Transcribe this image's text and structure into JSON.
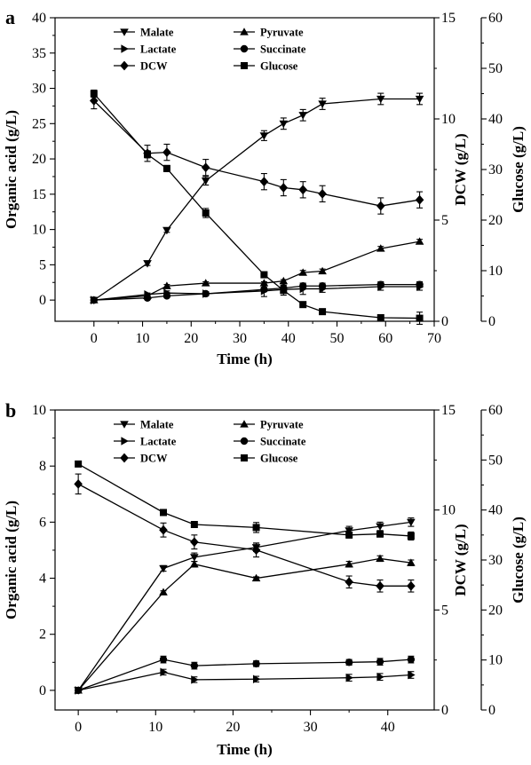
{
  "chart_data": [
    {
      "type": "line",
      "panel_label": "a",
      "xlabel": "Time (h)",
      "ylabel_left": "Organic acid (g/L)",
      "ylabel_right1": "DCW (g/L)",
      "ylabel_right2": "Glucose (g/L)",
      "xlim": [
        -8,
        70
      ],
      "ylim_left": [
        -3,
        40
      ],
      "ylim_right1": [
        0,
        15
      ],
      "ylim_right2": [
        0,
        60
      ],
      "x_ticks": [
        0,
        10,
        20,
        30,
        40,
        50,
        60,
        70
      ],
      "y_ticks_left": [
        0,
        5,
        10,
        15,
        20,
        25,
        30,
        35,
        40
      ],
      "y_ticks_right1": [
        0,
        5,
        10,
        15
      ],
      "y_ticks_right2": [
        0,
        10,
        20,
        30,
        40,
        50,
        60
      ],
      "legend": [
        "Malate",
        "Pyruvate",
        "Lactate",
        "Succinate",
        "DCW",
        "Glucose"
      ],
      "series": [
        {
          "name": "Malate",
          "axis": "left",
          "marker": "tri-down",
          "x": [
            0,
            11,
            15,
            23,
            35,
            39,
            43,
            47,
            59,
            67
          ],
          "y": [
            0,
            5.2,
            9.9,
            16.9,
            23.3,
            25.0,
            26.2,
            27.8,
            28.5,
            28.5
          ],
          "err": [
            0.2,
            0.3,
            0.3,
            0.6,
            0.7,
            0.8,
            0.8,
            0.8,
            0.8,
            0.8
          ]
        },
        {
          "name": "Pyruvate",
          "axis": "left",
          "marker": "tri-up",
          "x": [
            0,
            11,
            15,
            23,
            35,
            39,
            43,
            47,
            59,
            67
          ],
          "y": [
            0,
            0.6,
            2.0,
            2.4,
            2.4,
            2.7,
            3.9,
            4.1,
            7.3,
            8.3
          ],
          "err": [
            0.1,
            0.2,
            0.2,
            0.2,
            0.2,
            0.2,
            0.3,
            0.3,
            0.3,
            0.3
          ]
        },
        {
          "name": "Lactate",
          "axis": "left",
          "marker": "tri-right",
          "x": [
            0,
            11,
            15,
            23,
            35,
            39,
            43,
            47,
            59,
            67
          ],
          "y": [
            0,
            0.8,
            1.0,
            0.9,
            1.3,
            1.5,
            1.6,
            1.6,
            1.9,
            1.9
          ],
          "err": [
            0.1,
            0.2,
            0.3,
            0.3,
            0.8,
            0.8,
            0.8,
            0.5,
            0.5,
            0.5
          ]
        },
        {
          "name": "Succinate",
          "axis": "left",
          "marker": "circle",
          "x": [
            0,
            11,
            15,
            23,
            35,
            39,
            43,
            47,
            59,
            67
          ],
          "y": [
            0,
            0.3,
            0.6,
            0.9,
            1.5,
            1.7,
            2.0,
            2.0,
            2.2,
            2.2
          ],
          "err": [
            0.1,
            0.2,
            0.2,
            0.3,
            0.3,
            0.4,
            0.4,
            0.4,
            0.4,
            0.4
          ]
        },
        {
          "name": "DCW",
          "axis": "right1",
          "marker": "diamond",
          "x": [
            0,
            11,
            15,
            23,
            35,
            39,
            43,
            47,
            59,
            67
          ],
          "y": [
            10.9,
            8.3,
            8.35,
            7.6,
            6.9,
            6.6,
            6.5,
            6.3,
            5.7,
            6.0
          ],
          "err": [
            0.4,
            0.4,
            0.4,
            0.4,
            0.4,
            0.4,
            0.4,
            0.4,
            0.4,
            0.4
          ]
        },
        {
          "name": "Glucose",
          "axis": "right2",
          "marker": "square",
          "x": [
            0,
            11,
            15,
            23,
            35,
            39,
            43,
            47,
            59,
            67
          ],
          "y": [
            45.0,
            33.0,
            30.2,
            21.4,
            9.2,
            6.1,
            3.3,
            1.9,
            0.7,
            0.6
          ],
          "err": [
            0.7,
            0.7,
            0.6,
            0.9,
            0.5,
            0.5,
            0.4,
            0.4,
            0.3,
            1.2
          ]
        }
      ]
    },
    {
      "type": "line",
      "panel_label": "b",
      "xlabel": "Time (h)",
      "ylabel_left": "Organic acid (g/L)",
      "ylabel_right1": "DCW (g/L)",
      "ylabel_right2": "Glucose (g/L)",
      "xlim": [
        -3,
        46
      ],
      "ylim_left": [
        -0.7,
        10
      ],
      "ylim_right1": [
        0,
        15
      ],
      "ylim_right2": [
        0,
        60
      ],
      "x_ticks": [
        0,
        10,
        20,
        30,
        40
      ],
      "y_ticks_left": [
        0,
        2,
        4,
        6,
        8,
        10
      ],
      "y_ticks_right1": [
        0,
        5,
        10,
        15
      ],
      "y_ticks_right2": [
        0,
        10,
        20,
        30,
        40,
        50,
        60
      ],
      "legend": [
        "Malate",
        "Pyruvate",
        "Lactate",
        "Succinate",
        "DCW",
        "Glucose"
      ],
      "series": [
        {
          "name": "Malate",
          "axis": "left",
          "marker": "tri-down",
          "x": [
            0,
            11,
            15,
            23,
            35,
            39,
            43
          ],
          "y": [
            0,
            4.35,
            4.75,
            5.1,
            5.7,
            5.85,
            6.0
          ],
          "err": [
            0.05,
            0.1,
            0.15,
            0.15,
            0.15,
            0.15,
            0.15
          ]
        },
        {
          "name": "Pyruvate",
          "axis": "left",
          "marker": "tri-up",
          "x": [
            0,
            11,
            15,
            23,
            35,
            39,
            43
          ],
          "y": [
            0,
            3.5,
            4.5,
            4.0,
            4.5,
            4.7,
            4.55
          ],
          "err": [
            0.05,
            0.05,
            0.1,
            0.05,
            0.1,
            0.1,
            0.1
          ]
        },
        {
          "name": "Lactate",
          "axis": "left",
          "marker": "tri-right",
          "x": [
            0,
            11,
            15,
            23,
            35,
            39,
            43
          ],
          "y": [
            0,
            0.65,
            0.38,
            0.4,
            0.45,
            0.48,
            0.55
          ],
          "err": [
            0.05,
            0.1,
            0.1,
            0.1,
            0.12,
            0.12,
            0.12
          ]
        },
        {
          "name": "Succinate",
          "axis": "left",
          "marker": "circle",
          "x": [
            0,
            11,
            15,
            23,
            35,
            39,
            43
          ],
          "y": [
            0,
            1.1,
            0.88,
            0.95,
            1.0,
            1.02,
            1.1
          ],
          "err": [
            0.05,
            0.12,
            0.12,
            0.1,
            0.1,
            0.12,
            0.12
          ]
        },
        {
          "name": "DCW",
          "axis": "right1",
          "marker": "diamond",
          "x": [
            0,
            11,
            15,
            23,
            35,
            39,
            43
          ],
          "y": [
            11.3,
            9.0,
            8.4,
            8.0,
            6.4,
            6.2,
            6.2
          ],
          "err": [
            0.5,
            0.35,
            0.35,
            0.35,
            0.3,
            0.3,
            0.3
          ]
        },
        {
          "name": "Glucose",
          "axis": "right2",
          "marker": "square",
          "x": [
            0,
            11,
            15,
            23,
            35,
            39,
            43
          ],
          "y": [
            49.2,
            39.5,
            37.1,
            36.5,
            35.0,
            35.2,
            34.8
          ],
          "err": [
            0.4,
            0.4,
            0.5,
            1.0,
            0.6,
            0.6,
            0.8
          ]
        }
      ]
    }
  ]
}
